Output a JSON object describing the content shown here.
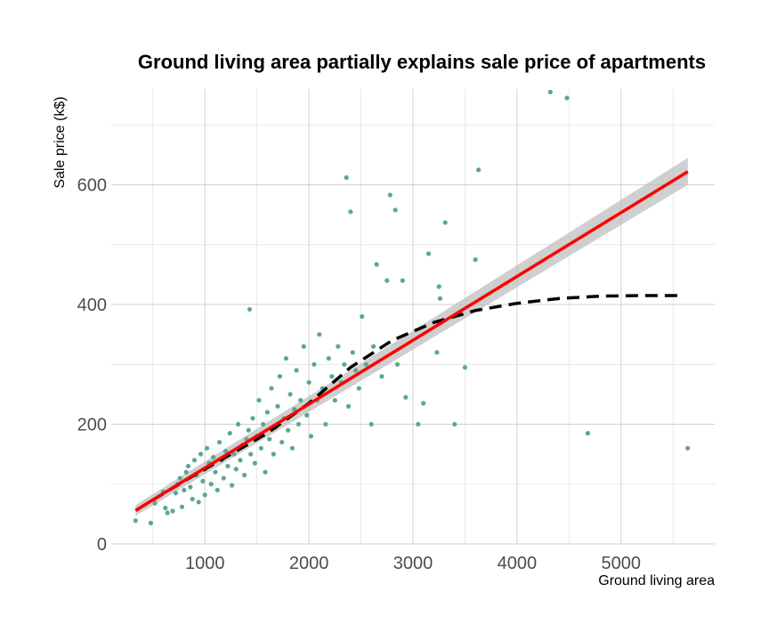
{
  "chart_data": {
    "type": "scatter",
    "title": "Ground living area partially explains sale price of apartments",
    "xlabel": "Ground living area",
    "ylabel": "Sale price (k$)",
    "xlim": [
      100,
      5900
    ],
    "ylim": [
      0,
      760
    ],
    "x_ticks": [
      1000,
      2000,
      3000,
      4000,
      5000
    ],
    "y_ticks": [
      0,
      200,
      400,
      600
    ],
    "grid": true,
    "colors": {
      "points": "#5ba88f",
      "linear_fit": "#ff0000",
      "confidence_band": "#bfbfbf",
      "smooth_fit": "#000000",
      "grid": "#d0d0d0"
    },
    "series": [
      {
        "kind": "points",
        "points": [
          [
            334,
            39
          ],
          [
            480,
            35
          ],
          [
            520,
            68
          ],
          [
            600,
            87
          ],
          [
            620,
            60
          ],
          [
            640,
            52
          ],
          [
            690,
            55
          ],
          [
            720,
            85
          ],
          [
            740,
            100
          ],
          [
            760,
            110
          ],
          [
            780,
            62
          ],
          [
            800,
            90
          ],
          [
            820,
            120
          ],
          [
            840,
            130
          ],
          [
            860,
            95
          ],
          [
            880,
            75
          ],
          [
            900,
            140
          ],
          [
            920,
            115
          ],
          [
            940,
            70
          ],
          [
            960,
            150
          ],
          [
            980,
            105
          ],
          [
            1000,
            125
          ],
          [
            1000,
            82
          ],
          [
            1020,
            160
          ],
          [
            1040,
            135
          ],
          [
            1060,
            100
          ],
          [
            1080,
            145
          ],
          [
            1100,
            120
          ],
          [
            1120,
            90
          ],
          [
            1140,
            170
          ],
          [
            1160,
            140
          ],
          [
            1180,
            110
          ],
          [
            1200,
            155
          ],
          [
            1220,
            130
          ],
          [
            1240,
            185
          ],
          [
            1260,
            98
          ],
          [
            1280,
            150
          ],
          [
            1300,
            125
          ],
          [
            1320,
            200
          ],
          [
            1340,
            140
          ],
          [
            1360,
            165
          ],
          [
            1380,
            115
          ],
          [
            1400,
            175
          ],
          [
            1420,
            190
          ],
          [
            1430,
            392
          ],
          [
            1440,
            150
          ],
          [
            1460,
            210
          ],
          [
            1480,
            135
          ],
          [
            1500,
            180
          ],
          [
            1520,
            240
          ],
          [
            1540,
            160
          ],
          [
            1560,
            200
          ],
          [
            1580,
            120
          ],
          [
            1600,
            220
          ],
          [
            1620,
            175
          ],
          [
            1640,
            260
          ],
          [
            1660,
            150
          ],
          [
            1680,
            195
          ],
          [
            1700,
            230
          ],
          [
            1720,
            280
          ],
          [
            1740,
            170
          ],
          [
            1760,
            210
          ],
          [
            1780,
            310
          ],
          [
            1800,
            190
          ],
          [
            1820,
            250
          ],
          [
            1840,
            160
          ],
          [
            1860,
            225
          ],
          [
            1880,
            290
          ],
          [
            1900,
            200
          ],
          [
            1920,
            240
          ],
          [
            1950,
            330
          ],
          [
            1980,
            215
          ],
          [
            2000,
            270
          ],
          [
            2020,
            180
          ],
          [
            2050,
            300
          ],
          [
            2080,
            240
          ],
          [
            2100,
            350
          ],
          [
            2130,
            260
          ],
          [
            2160,
            200
          ],
          [
            2190,
            310
          ],
          [
            2220,
            280
          ],
          [
            2250,
            240
          ],
          [
            2280,
            330
          ],
          [
            2310,
            270
          ],
          [
            2340,
            300
          ],
          [
            2360,
            612
          ],
          [
            2380,
            230
          ],
          [
            2400,
            555
          ],
          [
            2420,
            320
          ],
          [
            2450,
            290
          ],
          [
            2480,
            260
          ],
          [
            2510,
            380
          ],
          [
            2550,
            300
          ],
          [
            2600,
            200
          ],
          [
            2620,
            330
          ],
          [
            2650,
            467
          ],
          [
            2700,
            280
          ],
          [
            2750,
            440
          ],
          [
            2780,
            583
          ],
          [
            2830,
            558
          ],
          [
            2850,
            300
          ],
          [
            2900,
            440
          ],
          [
            2930,
            245
          ],
          [
            3050,
            200
          ],
          [
            3100,
            235
          ],
          [
            3150,
            485
          ],
          [
            3230,
            320
          ],
          [
            3250,
            430
          ],
          [
            3260,
            410
          ],
          [
            3310,
            537
          ],
          [
            3400,
            200
          ],
          [
            3500,
            295
          ],
          [
            3600,
            475
          ],
          [
            3630,
            625
          ],
          [
            4320,
            755
          ],
          [
            4480,
            745
          ],
          [
            4680,
            185
          ],
          [
            5640,
            160
          ]
        ]
      },
      {
        "kind": "linear_fit",
        "x": [
          334,
          5642
        ],
        "y": [
          56,
          622
        ],
        "ci_low": [
          47,
          600
        ],
        "ci_high": [
          65,
          645
        ]
      },
      {
        "kind": "smooth_fit",
        "x": [
          334,
          800,
          1200,
          1600,
          2000,
          2400,
          2800,
          3200,
          3600,
          4000,
          4400,
          4800,
          5200,
          5600
        ],
        "y": [
          56,
          105,
          145,
          185,
          235,
          295,
          340,
          370,
          390,
          402,
          410,
          414,
          415,
          415
        ]
      }
    ]
  }
}
